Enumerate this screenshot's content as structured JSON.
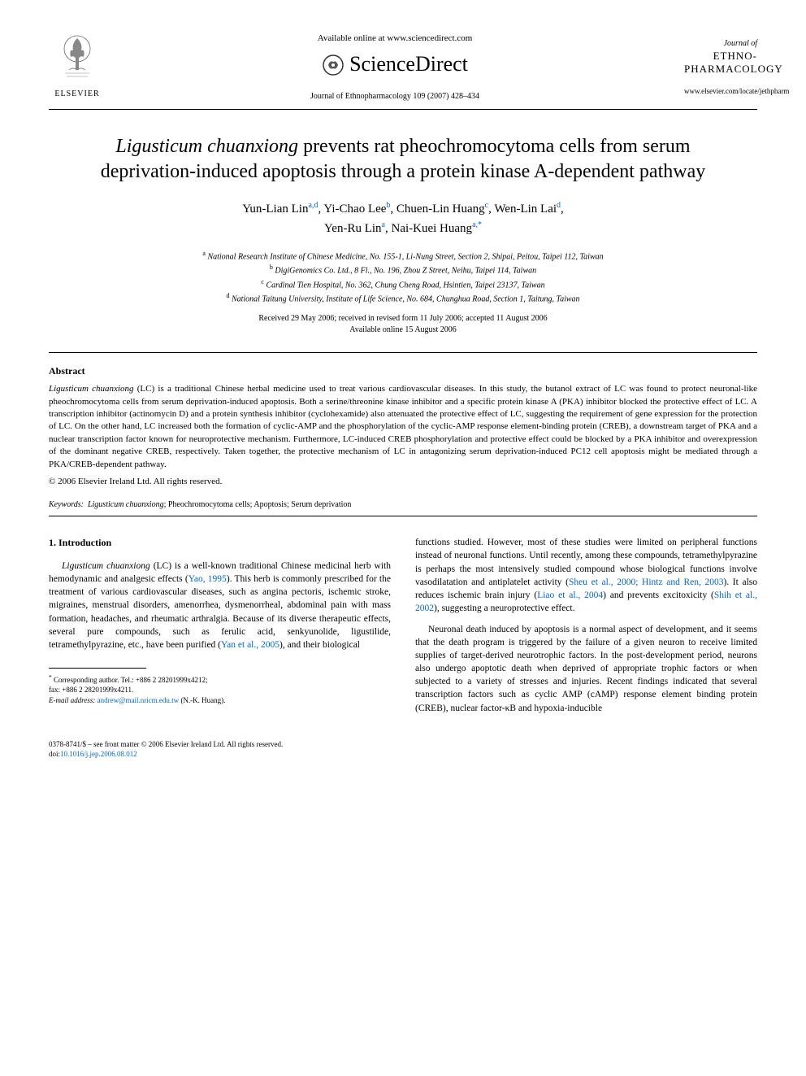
{
  "header": {
    "elsevier_label": "ELSEVIER",
    "available_online": "Available online at www.sciencedirect.com",
    "sciencedirect_text": "ScienceDirect",
    "journal_citation": "Journal of Ethnopharmacology 109 (2007) 428–434",
    "journal_of": "Journal of",
    "journal_name_line1": "ETHNO-",
    "journal_name_line2": "PHARMACOLOGY",
    "journal_url": "www.elsevier.com/locate/jethpharm"
  },
  "title": {
    "italic_part": "Ligusticum chuanxiong",
    "rest": " prevents rat pheochromocytoma cells from serum deprivation-induced apoptosis through a protein kinase A-dependent pathway"
  },
  "authors": [
    {
      "name": "Yun-Lian Lin",
      "sup": "a,d"
    },
    {
      "name": "Yi-Chao Lee",
      "sup": "b"
    },
    {
      "name": "Chuen-Lin Huang",
      "sup": "c"
    },
    {
      "name": "Wen-Lin Lai",
      "sup": "d"
    },
    {
      "name": "Yen-Ru Lin",
      "sup": "a"
    },
    {
      "name": "Nai-Kuei Huang",
      "sup": "a,",
      "star": "*"
    }
  ],
  "affiliations": [
    {
      "sup": "a",
      "text": "National Research Institute of Chinese Medicine, No. 155-1, Li-Nung Street, Section 2, Shipai, Peitou, Taipei 112, Taiwan"
    },
    {
      "sup": "b",
      "text": "DigiGenomics Co. Ltd., 8 Fl., No. 196, Zhou Z Street, Neihu, Taipei 114, Taiwan"
    },
    {
      "sup": "c",
      "text": "Cardinal Tien Hospital, No. 362, Chung Cheng Road, Hsintien, Taipei 23137, Taiwan"
    },
    {
      "sup": "d",
      "text": "National Taitung University, Institute of Life Science, No. 684, Chunghua Road, Section 1, Taitung, Taiwan"
    }
  ],
  "dates": {
    "line1": "Received 29 May 2006; received in revised form 11 July 2006; accepted 11 August 2006",
    "line2": "Available online 15 August 2006"
  },
  "abstract": {
    "heading": "Abstract",
    "italic_lead": "Ligusticum chuanxiong",
    "body": " (LC) is a traditional Chinese herbal medicine used to treat various cardiovascular diseases. In this study, the butanol extract of LC was found to protect neuronal-like pheochromocytoma cells from serum deprivation-induced apoptosis. Both a serine/threonine kinase inhibitor and a specific protein kinase A (PKA) inhibitor blocked the protective effect of LC. A transcription inhibitor (actinomycin D) and a protein synthesis inhibitor (cyclohexamide) also attenuated the protective effect of LC, suggesting the requirement of gene expression for the protection of LC. On the other hand, LC increased both the formation of cyclic-AMP and the phosphorylation of the cyclic-AMP response element-binding protein (CREB), a downstream target of PKA and a nuclear transcription factor known for neuroprotective mechanism. Furthermore, LC-induced CREB phosphorylation and protective effect could be blocked by a PKA inhibitor and overexpression of the dominant negative CREB, respectively. Taken together, the protective mechanism of LC in antagonizing serum deprivation-induced PC12 cell apoptosis might be mediated through a PKA/CREB-dependent pathway.",
    "copyright": "© 2006 Elsevier Ireland Ltd. All rights reserved."
  },
  "keywords": {
    "label": "Keywords:",
    "italic_term": "Ligusticum chuanxiong",
    "rest": "; Pheochromocytoma cells; Apoptosis; Serum deprivation"
  },
  "body": {
    "section_heading": "1. Introduction",
    "left_p1_italic": "Ligusticum chuanxiong",
    "left_p1_a": " (LC) is a well-known traditional Chinese medicinal herb with hemodynamic and analgesic effects (",
    "left_p1_link1": "Yao, 1995",
    "left_p1_b": "). This herb is commonly prescribed for the treatment of various cardiovascular diseases, such as angina pectoris, ischemic stroke, migraines, menstrual disorders, amenorrhea, dysmenorrheal, abdominal pain with mass formation, headaches, and rheumatic arthralgia. Because of its diverse therapeutic effects, several pure compounds, such as ferulic acid, senkyunolide, ligustilide, tetramethylpyrazine, etc., have been purified (",
    "left_p1_link2": "Yan et al., 2005",
    "left_p1_c": "), and their biological",
    "right_p1_a": "functions studied. However, most of these studies were limited on peripheral functions instead of neuronal functions. Until recently, among these compounds, tetramethylpyrazine is perhaps the most intensively studied compound whose biological functions involve vasodilatation and antiplatelet activity (",
    "right_p1_link1": "Sheu et al., 2000; Hintz and Ren, 2003",
    "right_p1_b": "). It also reduces ischemic brain injury (",
    "right_p1_link2": "Liao et al., 2004",
    "right_p1_c": ") and prevents excitoxicity (",
    "right_p1_link3": "Shih et al., 2002",
    "right_p1_d": "), suggesting a neuroprotective effect.",
    "right_p2": "Neuronal death induced by apoptosis is a normal aspect of development, and it seems that the death program is triggered by the failure of a given neuron to receive limited supplies of target-derived neurotrophic factors. In the post-development period, neurons also undergo apoptotic death when deprived of appropriate trophic factors or when subjected to a variety of stresses and injuries. Recent findings indicated that several transcription factors such as cyclic AMP (cAMP) response element binding protein (CREB), nuclear factor-κB and hypoxia-inducible"
  },
  "footnotes": {
    "corresponding": "Corresponding author. Tel.: +886 2 28201999x4212;",
    "fax": "fax: +886 2 28201999x4211.",
    "email_label": "E-mail address:",
    "email": "andrew@mail.nricm.edu.tw",
    "email_name": "(N.-K. Huang)."
  },
  "bottom": {
    "issn": "0378-8741/$ – see front matter © 2006 Elsevier Ireland Ltd. All rights reserved.",
    "doi_label": "doi:",
    "doi": "10.1016/j.jep.2006.08.012"
  },
  "colors": {
    "link": "#0066cc",
    "text": "#000000",
    "bg": "#ffffff"
  }
}
